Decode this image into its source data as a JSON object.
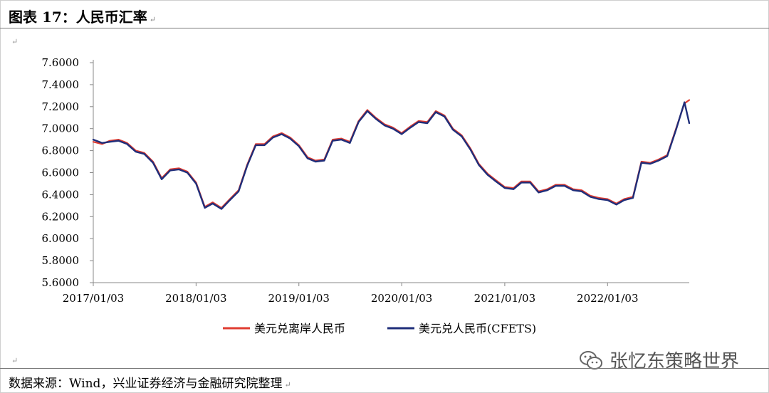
{
  "header": {
    "title": "图表 17：人民币汇率"
  },
  "footer": {
    "source": "数据来源：Wind，兴业证券经济与金融研究院整理"
  },
  "watermark": {
    "text": "张忆东策略世界",
    "icon": "wechat-icon"
  },
  "para_mark": "↵",
  "colors": {
    "offshore": "#e03c31",
    "cfets": "#1f2e7a",
    "axis": "#888888",
    "text": "#000000"
  },
  "chart_data": {
    "type": "line",
    "title": "",
    "xlabel": "",
    "ylabel": "",
    "ylim": [
      5.6,
      7.6
    ],
    "y_ticks": [
      "7.6000",
      "7.4000",
      "7.2000",
      "7.0000",
      "6.8000",
      "6.6000",
      "6.4000",
      "6.2000",
      "6.0000",
      "5.8000",
      "5.6000"
    ],
    "x_ticks": [
      "2017/01/03",
      "2018/01/03",
      "2019/01/03",
      "2020/01/03",
      "2021/01/03",
      "2022/01/03"
    ],
    "x_range": [
      "2017/01/03",
      "2022/10/20"
    ],
    "grid": false,
    "legend_position": "bottom",
    "x": [
      "2017/01/03",
      "2017/02/03",
      "2017/03/03",
      "2017/04/03",
      "2017/05/03",
      "2017/06/03",
      "2017/07/03",
      "2017/08/03",
      "2017/09/03",
      "2017/10/03",
      "2017/11/03",
      "2017/12/03",
      "2018/01/03",
      "2018/02/03",
      "2018/03/03",
      "2018/04/03",
      "2018/05/03",
      "2018/06/03",
      "2018/07/03",
      "2018/08/03",
      "2018/09/03",
      "2018/10/03",
      "2018/11/03",
      "2018/12/03",
      "2019/01/03",
      "2019/02/03",
      "2019/03/03",
      "2019/04/03",
      "2019/05/03",
      "2019/06/03",
      "2019/07/03",
      "2019/08/03",
      "2019/09/03",
      "2019/10/03",
      "2019/11/03",
      "2019/12/03",
      "2020/01/03",
      "2020/02/03",
      "2020/03/03",
      "2020/04/03",
      "2020/05/03",
      "2020/06/03",
      "2020/07/03",
      "2020/08/03",
      "2020/09/03",
      "2020/10/03",
      "2020/11/03",
      "2020/12/03",
      "2021/01/03",
      "2021/02/03",
      "2021/03/03",
      "2021/04/03",
      "2021/05/03",
      "2021/06/03",
      "2021/07/03",
      "2021/08/03",
      "2021/09/03",
      "2021/10/03",
      "2021/11/03",
      "2021/12/03",
      "2022/01/03",
      "2022/02/03",
      "2022/03/03",
      "2022/04/03",
      "2022/05/03",
      "2022/06/03",
      "2022/07/03",
      "2022/08/03",
      "2022/09/03",
      "2022/10/03",
      "2022/10/20"
    ],
    "series": [
      {
        "name": "美元兑离岸人民币",
        "color": "#e03c31",
        "values": [
          6.88,
          6.86,
          6.89,
          6.9,
          6.87,
          6.8,
          6.78,
          6.7,
          6.55,
          6.63,
          6.64,
          6.61,
          6.51,
          6.29,
          6.33,
          6.28,
          6.36,
          6.44,
          6.67,
          6.86,
          6.86,
          6.93,
          6.96,
          6.92,
          6.85,
          6.74,
          6.71,
          6.72,
          6.9,
          6.91,
          6.88,
          7.07,
          7.17,
          7.1,
          7.04,
          7.01,
          6.96,
          7.02,
          7.07,
          7.06,
          7.16,
          7.12,
          7.0,
          6.94,
          6.82,
          6.68,
          6.59,
          6.53,
          6.47,
          6.46,
          6.52,
          6.52,
          6.43,
          6.45,
          6.49,
          6.49,
          6.45,
          6.44,
          6.39,
          6.37,
          6.36,
          6.32,
          6.36,
          6.38,
          6.7,
          6.69,
          6.72,
          6.76,
          7.0,
          7.23,
          7.26
        ]
      },
      {
        "name": "美元兑人民币(CFETS)",
        "color": "#1f2e7a",
        "values": [
          6.9,
          6.87,
          6.88,
          6.89,
          6.86,
          6.79,
          6.77,
          6.69,
          6.54,
          6.62,
          6.63,
          6.6,
          6.5,
          6.28,
          6.32,
          6.27,
          6.35,
          6.43,
          6.66,
          6.85,
          6.85,
          6.92,
          6.95,
          6.91,
          6.84,
          6.73,
          6.7,
          6.71,
          6.89,
          6.9,
          6.87,
          7.06,
          7.16,
          7.09,
          7.03,
          7.0,
          6.95,
          7.01,
          7.06,
          7.05,
          7.15,
          7.11,
          6.99,
          6.93,
          6.81,
          6.67,
          6.58,
          6.52,
          6.46,
          6.45,
          6.51,
          6.51,
          6.42,
          6.44,
          6.48,
          6.48,
          6.44,
          6.43,
          6.38,
          6.36,
          6.35,
          6.31,
          6.35,
          6.37,
          6.69,
          6.68,
          6.71,
          6.75,
          6.99,
          7.24,
          7.05
        ]
      }
    ]
  }
}
